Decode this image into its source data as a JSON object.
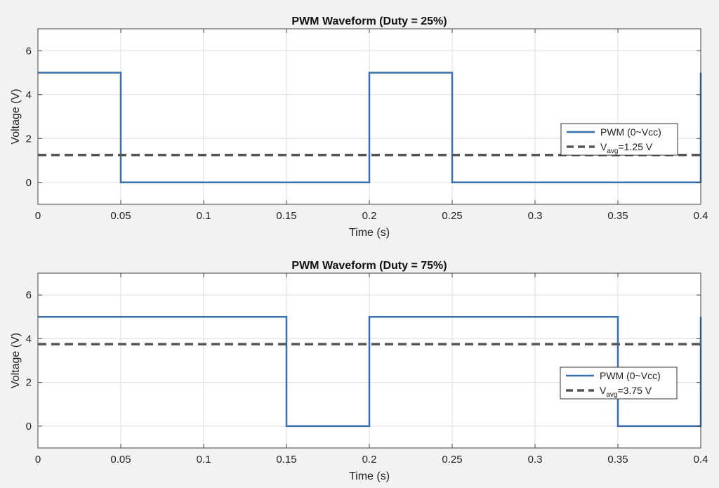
{
  "colors": {
    "background": "#f2f2f2",
    "plot_background": "#ffffff",
    "grid": "#dedede",
    "axis": "#444444",
    "pwm_line": "#3a6fb0",
    "avg_line": "#555555"
  },
  "chart_data": [
    {
      "type": "line",
      "title": "PWM Waveform (Duty = 25%)",
      "xlabel": "Time (s)",
      "ylabel": "Voltage (V)",
      "xlim": [
        0,
        0.4
      ],
      "ylim": [
        -1,
        7
      ],
      "xticks": [
        0,
        0.05,
        0.1,
        0.15,
        0.2,
        0.25,
        0.3,
        0.35,
        0.4
      ],
      "xtick_labels": [
        "0",
        "0.05",
        "0.1",
        "0.15",
        "0.2",
        "0.25",
        "0.3",
        "0.35",
        "0.4"
      ],
      "yticks": [
        0,
        2,
        4,
        6
      ],
      "ytick_labels": [
        "0",
        "2",
        "4",
        "6"
      ],
      "grid": true,
      "legend_position": "right",
      "series": [
        {
          "name": "PWM (0~Vcc)",
          "style": "solid",
          "x": [
            0,
            0.05,
            0.05,
            0.2,
            0.2,
            0.25,
            0.25,
            0.4,
            0.4
          ],
          "y": [
            5,
            5,
            0,
            0,
            5,
            5,
            0,
            0,
            5
          ]
        },
        {
          "name": "=1.25  V",
          "legend_prefix": "V",
          "legend_subscript": "avg",
          "style": "dashed",
          "x": [
            0,
            0.4
          ],
          "y": [
            1.25,
            1.25
          ]
        }
      ]
    },
    {
      "type": "line",
      "title": "PWM Waveform (Duty = 75%)",
      "xlabel": "Time (s)",
      "ylabel": "Voltage (V)",
      "xlim": [
        0,
        0.4
      ],
      "ylim": [
        -1,
        7
      ],
      "xticks": [
        0,
        0.05,
        0.1,
        0.15,
        0.2,
        0.25,
        0.3,
        0.35,
        0.4
      ],
      "xtick_labels": [
        "0",
        "0.05",
        "0.1",
        "0.15",
        "0.2",
        "0.25",
        "0.3",
        "0.35",
        "0.4"
      ],
      "yticks": [
        0,
        2,
        4,
        6
      ],
      "ytick_labels": [
        "0",
        "2",
        "4",
        "6"
      ],
      "grid": true,
      "legend_position": "right",
      "series": [
        {
          "name": "PWM (0~Vcc)",
          "style": "solid",
          "x": [
            0,
            0.15,
            0.15,
            0.2,
            0.2,
            0.35,
            0.35,
            0.4,
            0.4
          ],
          "y": [
            5,
            5,
            0,
            0,
            5,
            5,
            0,
            0,
            5
          ]
        },
        {
          "name": "=3.75  V",
          "legend_prefix": "V",
          "legend_subscript": "avg",
          "style": "dashed",
          "x": [
            0,
            0.4
          ],
          "y": [
            3.75,
            3.75
          ]
        }
      ]
    }
  ]
}
